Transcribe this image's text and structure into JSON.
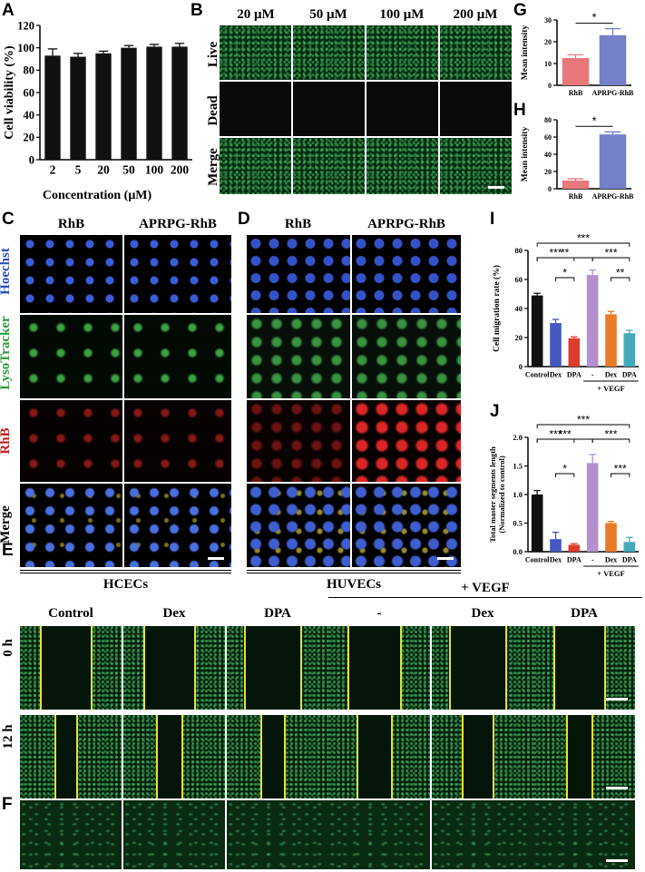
{
  "panels": {
    "A": "A",
    "B": "B",
    "C": "C",
    "D": "D",
    "E": "E",
    "F": "F",
    "G": "G",
    "H": "H",
    "I": "I",
    "J": "J"
  },
  "chart_A": {
    "type": "bar",
    "ylabel": "Cell viability (%)",
    "xlabel": "Concentration (μM)",
    "categories": [
      "2",
      "5",
      "20",
      "50",
      "100",
      "200"
    ],
    "values": [
      93,
      92,
      95,
      100,
      101,
      101
    ],
    "errors": [
      6,
      3,
      2,
      2,
      2,
      3
    ],
    "ylim": [
      0,
      120
    ],
    "yticks": [
      "0",
      "20",
      "40",
      "60",
      "80",
      "100",
      "120"
    ],
    "bar_color": "#111111"
  },
  "panel_B": {
    "columns": [
      "20 μM",
      "50 μM",
      "100 μM",
      "200 μM"
    ],
    "rows": [
      "Live",
      "Dead",
      "Merge"
    ]
  },
  "chart_G": {
    "type": "bar",
    "ylabel": "Mean intensity",
    "categories": [
      "RhB",
      "APRPG-RhB"
    ],
    "values": [
      12.5,
      23
    ],
    "errors": [
      1.5,
      3
    ],
    "ylim": [
      0,
      30
    ],
    "yticks": [
      "0",
      "10",
      "20",
      "30"
    ],
    "colors": [
      "#e8787c",
      "#7480c8"
    ],
    "sig": "*"
  },
  "chart_H": {
    "type": "bar",
    "ylabel": "Mean intensity",
    "categories": [
      "RhB",
      "APRPG-RhB"
    ],
    "values": [
      9.5,
      63
    ],
    "errors": [
      2,
      3
    ],
    "ylim": [
      0,
      80
    ],
    "yticks": [
      "0",
      "20",
      "40",
      "60",
      "80"
    ],
    "colors": [
      "#e8787c",
      "#7480c8"
    ],
    "sig": "*"
  },
  "panel_C": {
    "columns": [
      "RhB",
      "APRPG-RhB"
    ],
    "rows": [
      "Hoechst",
      "LysoTracker",
      "RhB",
      "Merge"
    ],
    "caption": "HCECs"
  },
  "panel_D": {
    "columns": [
      "RhB",
      "APRPG-RhB"
    ],
    "caption": "HUVECs"
  },
  "chart_I": {
    "type": "bar",
    "ylabel": "Cell migration rate (%)",
    "categories": [
      "Control",
      "Dex",
      "DPA",
      "-",
      "Dex",
      "DPA"
    ],
    "group_label": "+ VEGF",
    "values": [
      49,
      30,
      19.5,
      63,
      36,
      23
    ],
    "errors": [
      1.5,
      2.5,
      1,
      3.5,
      2,
      2
    ],
    "colors": [
      "#111111",
      "#4458c0",
      "#e03c2c",
      "#b48fd0",
      "#e87a2a",
      "#44aab8"
    ],
    "ylim": [
      0,
      80
    ],
    "yticks": [
      "0",
      "20",
      "40",
      "60",
      "80"
    ],
    "sig": [
      "***",
      "**",
      "***",
      "***",
      "*",
      "**"
    ]
  },
  "chart_J": {
    "type": "bar",
    "ylabel": "Total master segments length (Normalized to control)",
    "ylabel_line1": "Total master segments length",
    "ylabel_line2": "(Normalized to control)",
    "categories": [
      "Control",
      "Dex",
      "DPA",
      "-",
      "Dex",
      "DPA"
    ],
    "group_label": "+ VEGF",
    "values": [
      1.0,
      0.22,
      0.12,
      1.55,
      0.5,
      0.17
    ],
    "errors": [
      0.07,
      0.12,
      0.02,
      0.15,
      0.03,
      0.08
    ],
    "colors": [
      "#111111",
      "#4458c0",
      "#e03c2c",
      "#b48fd0",
      "#e87a2a",
      "#44aab8"
    ],
    "ylim": [
      0,
      2.0
    ],
    "yticks": [
      "0.0",
      "0.5",
      "1.0",
      "1.5",
      "2.0"
    ],
    "sig": [
      "***",
      "***",
      "***",
      "***",
      "*",
      "***"
    ]
  },
  "panel_E": {
    "columns": [
      "Control",
      "Dex",
      "DPA",
      "-",
      "Dex",
      "DPA"
    ],
    "group_label": "+ VEGF",
    "rows": [
      "0 h",
      "12 h"
    ],
    "gap_widths_0h": [
      56,
      56,
      62,
      58,
      62,
      56
    ],
    "gap_widths_12h": [
      24,
      28,
      26,
      38,
      34,
      28
    ]
  }
}
